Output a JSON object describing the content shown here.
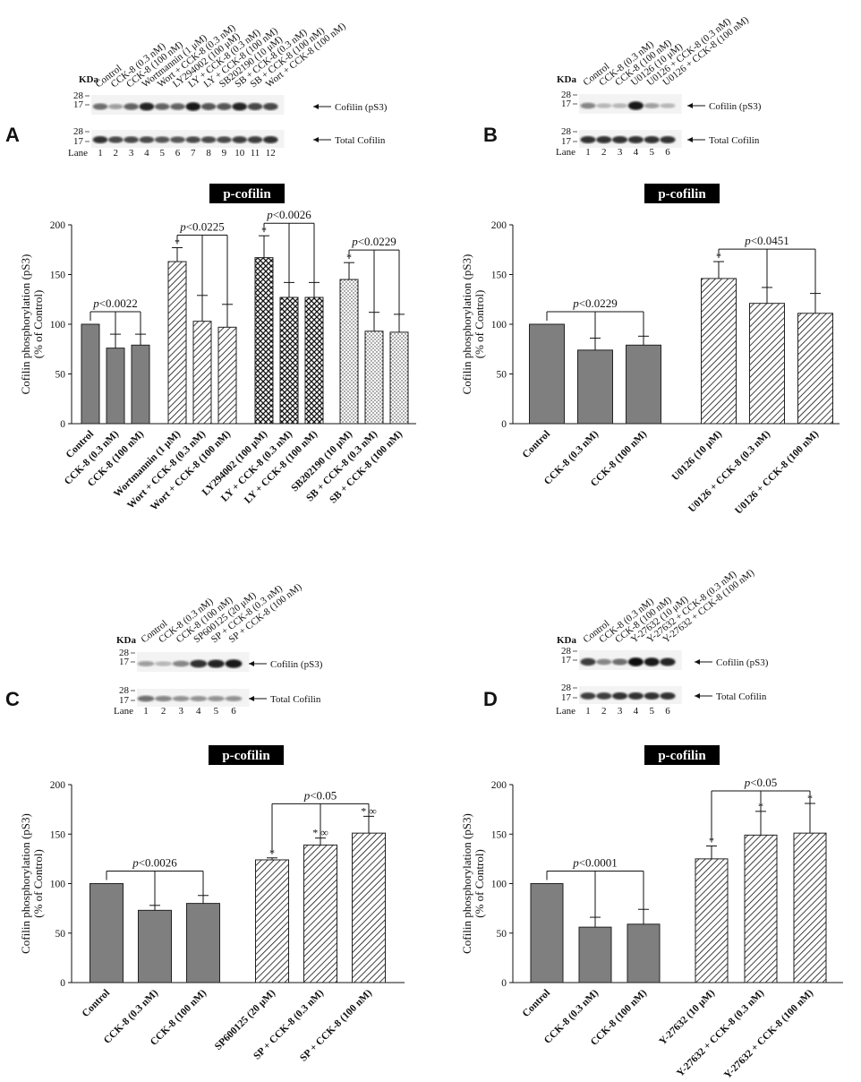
{
  "figure": {
    "kda_label": "KDa",
    "lane_word": "Lane",
    "marker_28": "28",
    "marker_17": "17",
    "band_cofilin_ps3": "Cofilin (pS3)",
    "band_total_cofilin": "Total Cofilin",
    "bar_colors": {
      "gray": "#7f7f7f",
      "outline": "#222222",
      "title_bg": "#000000"
    }
  },
  "chart_data": [
    {
      "panel": "A",
      "type": "bar",
      "title": "p-cofilin",
      "ylabel_line1": "Cofilin phosphorylation (pS3)",
      "ylabel_line2": "(% of Control)",
      "ylim": [
        0,
        200
      ],
      "yticks": [
        0,
        50,
        100,
        150,
        200
      ],
      "blot_labels": [
        "Control",
        "CCK-8 (0.3 nM)",
        "CCK-8 (100 nM)",
        "Wortmannin (1 μM)",
        "Wort + CCK-8 (0.3 nM)",
        "LY294002 (100 μM)",
        "LY + CCK-8 (0.3 nM)",
        "LY + CCK-8 (100 nM)",
        "SB202190 (10 μM)",
        "SB + CCK-8 (0.3 nM)",
        "SB + CCK-8 (100 nM)",
        "Wort + CCK-8 (100 nM)"
      ],
      "lanes": [
        "1",
        "2",
        "3",
        "4",
        "5",
        "6",
        "7",
        "8",
        "9",
        "10",
        "11",
        "12"
      ],
      "categories": [
        "Control",
        "CCK-8 (0.3 nM)",
        "CCK-8 (100 nM)",
        "Wortmannin (1 μM)",
        "Wort + CCK-8 (0.3 nM)",
        "Wort + CCK-8 (100 nM)",
        "LY294002 (100 μM)",
        "LY + CCK-8 (0.3 nM)",
        "LY + CCK-8 (100 nM)",
        "SB202190 (10 μM)",
        "SB + CCK-8 (0.3 nM)",
        "SB + CCK-8 (100 nM)"
      ],
      "values": [
        100,
        76,
        79,
        163,
        103,
        97,
        167,
        127,
        127,
        145,
        93,
        92
      ],
      "errors": [
        0,
        14,
        11,
        14,
        26,
        23,
        22,
        15,
        15,
        17,
        19,
        18
      ],
      "patterns": [
        "gray",
        "gray",
        "gray",
        "diag",
        "diag",
        "diag",
        "cross",
        "cross",
        "cross",
        "dots",
        "dots",
        "dots"
      ],
      "stars": [
        false,
        false,
        false,
        true,
        false,
        false,
        true,
        false,
        false,
        true,
        false,
        false
      ],
      "brackets": [
        {
          "label": "p<0.0022",
          "from": 0,
          "to": [
            1,
            2
          ]
        },
        {
          "label": "p<0.0225",
          "from": 3,
          "to": [
            4,
            5
          ]
        },
        {
          "label": "p<0.0026",
          "from": 6,
          "to": [
            7,
            8
          ]
        },
        {
          "label": "p<0.0229",
          "from": 9,
          "to": [
            10,
            11
          ]
        }
      ]
    },
    {
      "panel": "B",
      "type": "bar",
      "title": "p-cofilin",
      "ylabel_line1": "Cofilin phosphorylation (pS3)",
      "ylabel_line2": "(% of Control)",
      "ylim": [
        0,
        200
      ],
      "yticks": [
        0,
        50,
        100,
        150,
        200
      ],
      "blot_labels": [
        "Control",
        "CCK-8 (0.3 nM)",
        "CCK-8 (100 nM)",
        "U0126 (10 μM)",
        "U0126 + CCK-8 (0.3 nM)",
        "U0126 + CCK-8 (100 nM)"
      ],
      "lanes": [
        "1",
        "2",
        "3",
        "4",
        "5",
        "6"
      ],
      "categories": [
        "Control",
        "CCK-8 (0.3 nM)",
        "CCK-8 (100 nM)",
        "U0126 (10 μM)",
        "U0126 + CCK-8 (0.3 nM)",
        "U0126 + CCK-8 (100 nM)"
      ],
      "values": [
        100,
        74,
        79,
        146,
        121,
        111
      ],
      "errors": [
        0,
        12,
        9,
        17,
        16,
        20
      ],
      "patterns": [
        "gray",
        "gray",
        "gray",
        "diag",
        "diag",
        "diag"
      ],
      "stars": [
        false,
        false,
        false,
        true,
        false,
        false
      ],
      "brackets": [
        {
          "label": "p<0.0229",
          "from": 0,
          "to": [
            1,
            2
          ]
        },
        {
          "label": "p<0.0451",
          "from": 3,
          "to": [
            4,
            5
          ]
        }
      ]
    },
    {
      "panel": "C",
      "type": "bar",
      "title": "p-cofilin",
      "ylabel_line1": "Cofilin phosphorylation (pS3)",
      "ylabel_line2": "(% of Control)",
      "ylim": [
        0,
        200
      ],
      "yticks": [
        0,
        50,
        100,
        150,
        200
      ],
      "blot_labels": [
        "Control",
        "CCK-8 (0.3 nM)",
        "CCK-8 (100 nM)",
        "SP600125 (20 μM)",
        "SP + CCK-8 (0.3 nM)",
        "SP + CCK-8 (100 nM)"
      ],
      "lanes": [
        "1",
        "2",
        "3",
        "4",
        "5",
        "6"
      ],
      "categories": [
        "Control",
        "CCK-8 (0.3 nM)",
        "CCK-8 (100 nM)",
        "SP600125 (20 μM)",
        "SP + CCK-8 (0.3 nM)",
        "SP + CCK-8 (100 nM)"
      ],
      "values": [
        100,
        73,
        80,
        124,
        139,
        151
      ],
      "errors": [
        0,
        5,
        8,
        2,
        7,
        17
      ],
      "patterns": [
        "gray",
        "gray",
        "gray",
        "diag",
        "diag",
        "diag"
      ],
      "stars": [
        false,
        false,
        false,
        true,
        true,
        true
      ],
      "star_labels": [
        "",
        "",
        "",
        "*",
        "* ∞",
        "* ∞"
      ],
      "brackets": [
        {
          "label": "p<0.0026",
          "from": 0,
          "to": [
            1,
            2
          ]
        },
        {
          "label": "p<0.05",
          "from": 3,
          "to": [
            4,
            5
          ]
        }
      ]
    },
    {
      "panel": "D",
      "type": "bar",
      "title": "p-cofilin",
      "ylabel_line1": "Cofilin phosphorylation (pS3)",
      "ylabel_line2": "(% of Control)",
      "ylim": [
        0,
        200
      ],
      "yticks": [
        0,
        50,
        100,
        150,
        200
      ],
      "blot_labels": [
        "Control",
        "CCK-8 (0.3 nM)",
        "CCK-8 (100 nM)",
        "Y-27632 (10 μM)",
        "Y-27632 + CCK-8 (0.3 nM)",
        "Y-27632 + CCK-8 (100 nM)"
      ],
      "lanes": [
        "1",
        "2",
        "3",
        "4",
        "5",
        "6"
      ],
      "categories": [
        "Control",
        "CCK-8 (0.3 nM)",
        "CCK-8 (100 nM)",
        "Y-27632 (10 μM)",
        "Y-27632 + CCK-8 (0.3 nM)",
        "Y-27632 + CCK-8 (100 nM)"
      ],
      "values": [
        100,
        56,
        59,
        125,
        149,
        151
      ],
      "errors": [
        0,
        10,
        15,
        13,
        24,
        30
      ],
      "patterns": [
        "gray",
        "gray",
        "gray",
        "diag",
        "diag",
        "diag"
      ],
      "stars": [
        false,
        false,
        false,
        true,
        true,
        true
      ],
      "brackets": [
        {
          "label": "p<0.0001",
          "from": 0,
          "to": [
            1,
            2
          ]
        },
        {
          "label": "p<0.05",
          "from": 3,
          "to": [
            4,
            5
          ]
        }
      ]
    }
  ],
  "blots": [
    {
      "panel": "A",
      "ps3_intensity": [
        0.55,
        0.35,
        0.6,
        0.85,
        0.6,
        0.6,
        0.9,
        0.65,
        0.65,
        0.85,
        0.7,
        0.7
      ],
      "total_intensity": [
        0.8,
        0.7,
        0.7,
        0.7,
        0.65,
        0.65,
        0.7,
        0.7,
        0.7,
        0.75,
        0.75,
        0.8
      ]
    },
    {
      "panel": "B",
      "ps3_intensity": [
        0.45,
        0.25,
        0.25,
        0.9,
        0.35,
        0.25
      ],
      "total_intensity": [
        0.8,
        0.8,
        0.8,
        0.8,
        0.8,
        0.8
      ]
    },
    {
      "panel": "C",
      "ps3_intensity": [
        0.35,
        0.25,
        0.45,
        0.8,
        0.85,
        0.9
      ],
      "total_intensity": [
        0.55,
        0.45,
        0.4,
        0.4,
        0.4,
        0.4
      ]
    },
    {
      "panel": "D",
      "ps3_intensity": [
        0.75,
        0.45,
        0.55,
        0.95,
        0.9,
        0.85
      ],
      "total_intensity": [
        0.75,
        0.75,
        0.8,
        0.8,
        0.8,
        0.8
      ]
    }
  ]
}
